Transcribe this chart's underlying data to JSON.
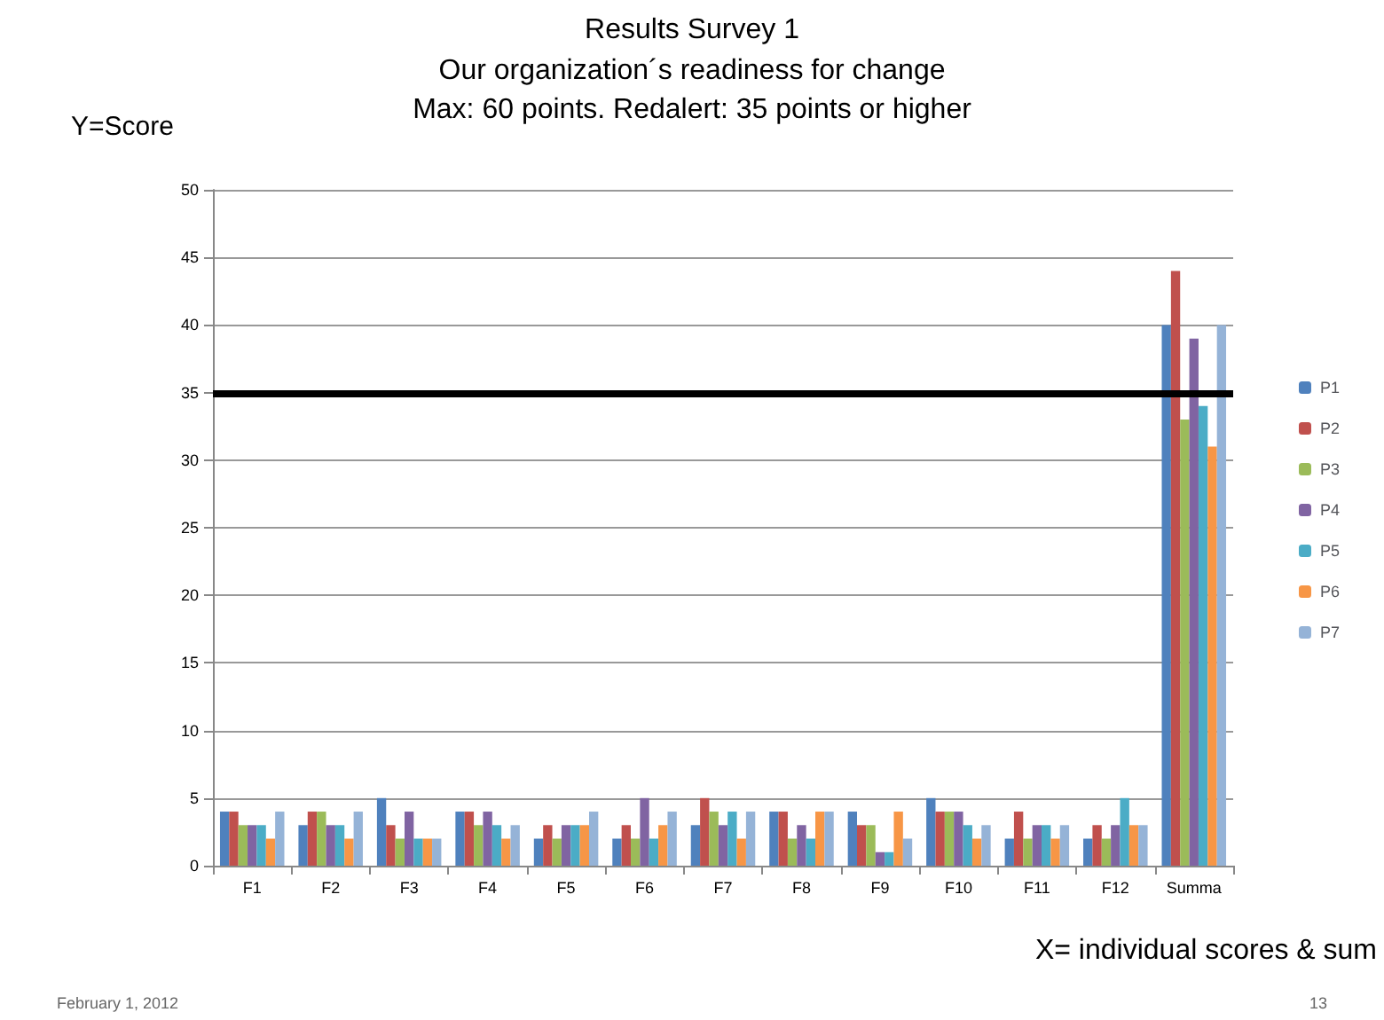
{
  "chart_data": {
    "type": "bar",
    "title": "Results Survey 1",
    "subtitle": "Our organization´s readiness for change\nMax: 60 points. Redalert: 35 points or higher",
    "ylabel": "Y=Score",
    "xlabel": "X= individual scores & sum",
    "categories": [
      "F1",
      "F2",
      "F3",
      "F4",
      "F5",
      "F6",
      "F7",
      "F8",
      "F9",
      "F10",
      "F11",
      "F12",
      "Summa"
    ],
    "series": [
      {
        "name": "P1",
        "color": "#4f81bd",
        "values": [
          4,
          3,
          5,
          4,
          2,
          2,
          3,
          4,
          4,
          5,
          2,
          2,
          40
        ]
      },
      {
        "name": "P2",
        "color": "#c0504d",
        "values": [
          4,
          4,
          3,
          4,
          3,
          3,
          5,
          4,
          3,
          4,
          4,
          3,
          44
        ]
      },
      {
        "name": "P3",
        "color": "#9bbb59",
        "values": [
          3,
          4,
          2,
          3,
          2,
          2,
          4,
          2,
          3,
          4,
          2,
          2,
          33
        ]
      },
      {
        "name": "P4",
        "color": "#8064a2",
        "values": [
          3,
          3,
          4,
          4,
          3,
          5,
          3,
          3,
          1,
          4,
          3,
          3,
          39
        ]
      },
      {
        "name": "P5",
        "color": "#4bacc6",
        "values": [
          3,
          3,
          2,
          3,
          3,
          2,
          4,
          2,
          1,
          3,
          3,
          5,
          34
        ]
      },
      {
        "name": "P6",
        "color": "#f79646",
        "values": [
          2,
          2,
          2,
          2,
          3,
          3,
          2,
          4,
          4,
          2,
          2,
          3,
          31
        ]
      },
      {
        "name": "P7",
        "color": "#95b3d7",
        "values": [
          4,
          4,
          2,
          3,
          4,
          4,
          4,
          4,
          2,
          3,
          3,
          3,
          40
        ]
      }
    ],
    "ylim": [
      0,
      50
    ],
    "yticks": [
      0,
      5,
      10,
      15,
      20,
      25,
      30,
      35,
      40,
      45,
      50
    ],
    "grid": "y",
    "legend": "right",
    "ref_lines": [
      {
        "axis": "y",
        "value": 35,
        "color": "#000000"
      }
    ],
    "annotations": [
      "February 1, 2012",
      "13"
    ]
  }
}
